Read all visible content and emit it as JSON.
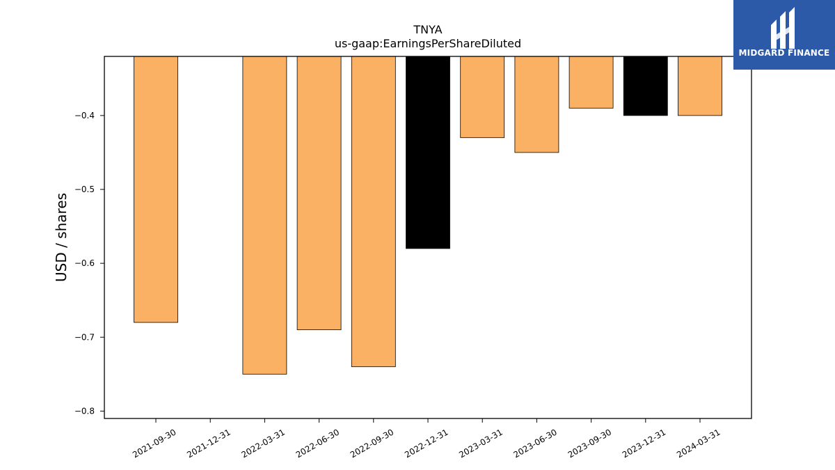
{
  "brand": {
    "name": "MIDGARD FINANCE",
    "colors": {
      "background": "#2d5aa8",
      "text": "#ffffff"
    }
  },
  "chart_data": {
    "type": "bar",
    "title": "TNYA",
    "subtitle": "us-gaap:EarningsPerShareDiluted",
    "ylabel": "USD / shares",
    "xlabel": "",
    "ylim": [
      -0.81,
      -0.32
    ],
    "yticks": [
      -0.4,
      -0.5,
      -0.6,
      -0.7,
      -0.8
    ],
    "ytick_labels": [
      "−0.4",
      "−0.5",
      "−0.6",
      "−0.7",
      "−0.8"
    ],
    "categories": [
      "2021-09-30",
      "2021-12-31",
      "2022-03-31",
      "2022-06-30",
      "2022-09-30",
      "2022-12-31",
      "2023-03-31",
      "2023-06-30",
      "2023-09-30",
      "2023-12-31",
      "2024-03-31"
    ],
    "values": [
      -0.68,
      null,
      -0.75,
      -0.69,
      -0.74,
      -0.58,
      -0.43,
      -0.45,
      -0.39,
      -0.4,
      -0.4
    ],
    "bar_colors": [
      "#fbb163",
      null,
      "#fbb163",
      "#fbb163",
      "#fbb163",
      "#000000",
      "#fbb163",
      "#fbb163",
      "#fbb163",
      "#000000",
      "#fbb163"
    ],
    "grid": false,
    "legend": "none"
  }
}
